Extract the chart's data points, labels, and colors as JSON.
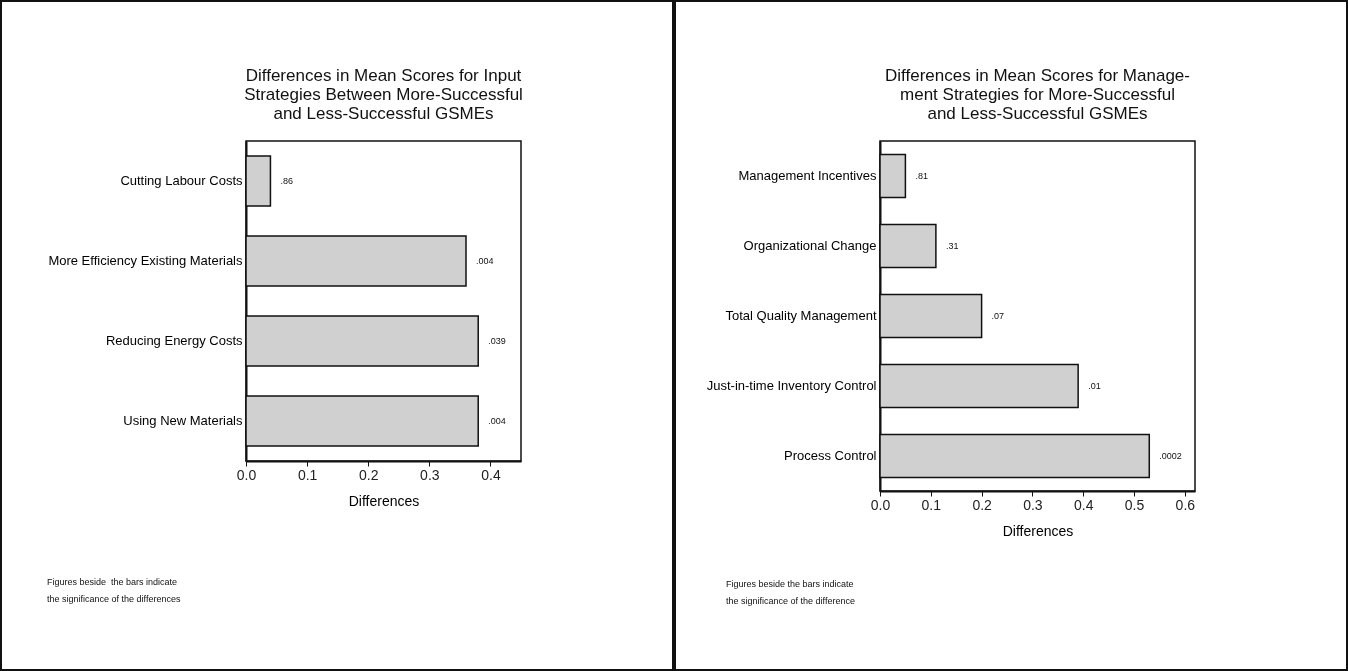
{
  "chart_data": [
    {
      "type": "bar",
      "orientation": "horizontal",
      "title": "Differences in Mean Scores for Input\nStrategies Between More-Successful\nand Less-Successful GSMEs",
      "xlabel": "Differences",
      "categories": [
        "Cutting Labour Costs",
        "More Efficiency Existing Materials",
        "Reducing Energy Costs",
        "Using New Materials"
      ],
      "values": [
        0.04,
        0.36,
        0.38,
        0.38
      ],
      "color": "#d0d0d0",
      "xlim": [
        0,
        0.45
      ],
      "xticks": [
        {
          "value": 0,
          "label": "0.0"
        },
        0.1,
        0.2,
        0.3,
        0.4
      ],
      "annotations": [
        {
          "text": ".86",
          "x": 0.04,
          "y": "Cutting Labour Costs"
        },
        {
          "text": ".004",
          "x": 0.36,
          "y": "More Efficiency Existing Materials"
        },
        {
          "text": ".039",
          "x": 0.38,
          "y": "Reducing Energy Costs"
        },
        {
          "text": ".004",
          "x": 0.38,
          "y": "Using New Materials"
        },
        "Figures beside  the bars indicate\nthe significance of the differences"
      ]
    },
    {
      "type": "bar",
      "orientation": "horizontal",
      "title": "Differences in Mean Scores for Manage-\nment Strategies for More-Successful\nand Less-Successful GSMEs",
      "xlabel": "Differences",
      "categories": [
        "Management Incentives",
        "Organizational Change",
        "Total Quality Management",
        "Just-in-time Inventory Control",
        "Process Control"
      ],
      "values": [
        0.05,
        0.11,
        0.2,
        0.39,
        0.53
      ],
      "color": "#d0d0d0",
      "xlim": [
        0,
        0.62
      ],
      "xticks": [
        {
          "value": 0,
          "label": "0.0"
        },
        0.1,
        0.2,
        0.3,
        0.4,
        0.5,
        0.6
      ],
      "annotations": [
        {
          "text": ".81",
          "x": 0.05,
          "y": "Management Incentives"
        },
        {
          "text": ".31",
          "x": 0.11,
          "y": "Organizational Change"
        },
        {
          "text": ".07",
          "x": 0.2,
          "y": "Total Quality Management"
        },
        {
          "text": ".01",
          "x": 0.39,
          "y": "Just-in-time Inventory Control"
        },
        {
          "text": ".0002",
          "x": 0.53,
          "y": "Process Control"
        },
        "Figures beside the bars indicate\nthe significance of the difference"
      ]
    }
  ]
}
